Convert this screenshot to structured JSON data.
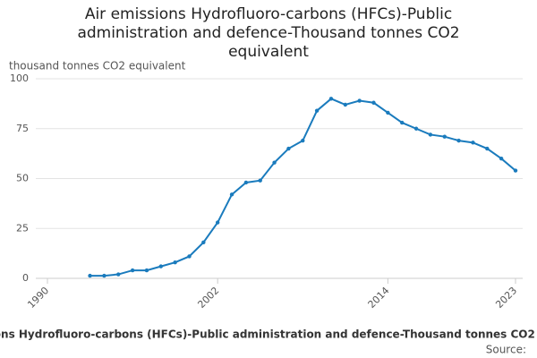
{
  "chart_data": {
    "type": "line",
    "title": "Air emissions Hydrofluoro-carbons (HFCs)-Public administration and defence-Thousand tonnes CO2 equivalent",
    "y_label": "thousand tonnes CO2 equivalent",
    "source_label": "Source:",
    "x": [
      1993,
      1994,
      1995,
      1996,
      1997,
      1998,
      1999,
      2000,
      2001,
      2002,
      2003,
      2004,
      2005,
      2006,
      2007,
      2008,
      2009,
      2010,
      2011,
      2012,
      2013,
      2014,
      2015,
      2016,
      2017,
      2018,
      2019,
      2020,
      2021,
      2022,
      2023
    ],
    "series": [
      {
        "name": "Air emissions",
        "color": "#1a7bbd",
        "values": [
          1.3,
          1.3,
          2,
          4,
          4,
          6,
          8,
          11,
          18,
          28,
          42,
          48,
          49,
          58,
          65,
          69,
          84,
          90,
          87,
          89,
          88,
          83,
          78,
          75,
          72,
          71,
          69,
          68,
          65,
          60,
          54
        ]
      }
    ],
    "xlim": [
      1990,
      2023
    ],
    "xticks": [
      1990,
      2002,
      2014,
      2023
    ],
    "ylim": [
      0,
      100
    ],
    "yticks": [
      0,
      25,
      50,
      75,
      100
    ],
    "grid": true
  }
}
